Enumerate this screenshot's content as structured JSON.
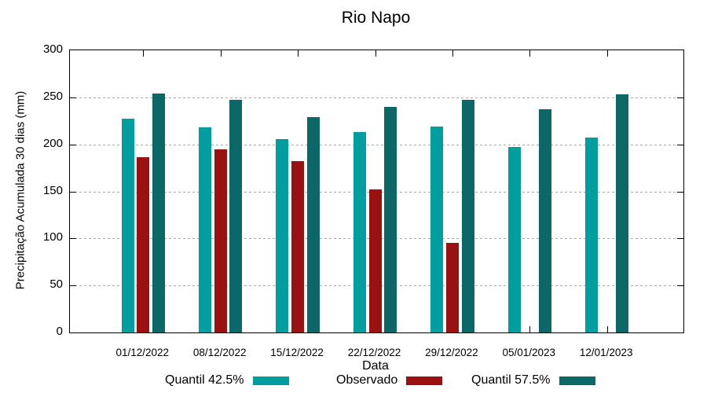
{
  "chart_data": {
    "type": "bar",
    "title": "Rio Napo",
    "xlabel": "Data",
    "ylabel": "Precipitação Acumulada 30 dias (mm)",
    "categories": [
      "01/12/2022",
      "08/12/2022",
      "15/12/2022",
      "22/12/2022",
      "29/12/2022",
      "05/01/2023",
      "12/01/2023"
    ],
    "series": [
      {
        "name": "Quantil 42.5%",
        "color": "#009E9E",
        "values": [
          227,
          218,
          206,
          213,
          219,
          197,
          207
        ]
      },
      {
        "name": "Observado",
        "color": "#9A1111",
        "values": [
          186,
          195,
          182,
          152,
          95,
          null,
          null
        ]
      },
      {
        "name": "Quantil 57.5%",
        "color": "#0B6866",
        "values": [
          254,
          247,
          229,
          240,
          247,
          237,
          253
        ]
      }
    ],
    "ylim": [
      0,
      300
    ],
    "yticks": [
      0,
      50,
      100,
      150,
      200,
      250,
      300
    ],
    "grid": "horizontal-dotted",
    "legend_position": "bottom",
    "colors": {
      "axis": "#000000",
      "gridline": "#a9a9a9",
      "background": "#ffffff"
    }
  }
}
